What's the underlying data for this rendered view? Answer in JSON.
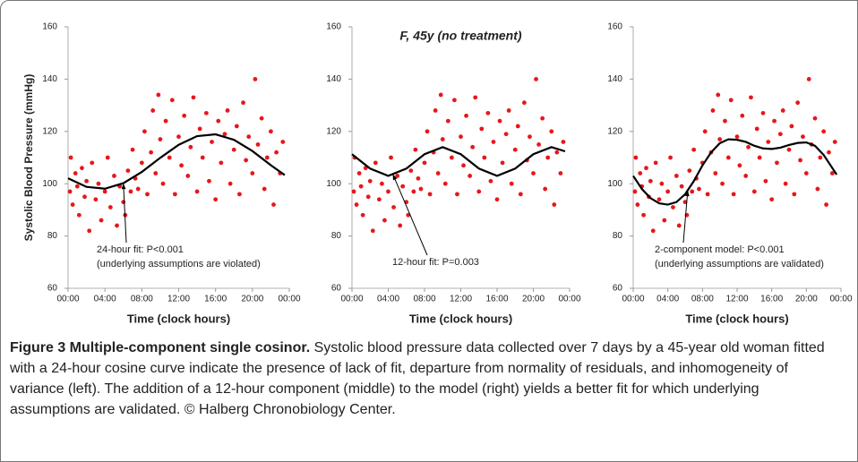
{
  "chart_data": [
    {
      "type": "scatter",
      "ylabel": "Systolic Blood Pressure (mmHg)",
      "xlabel": "Time (clock hours)",
      "xlim": [
        0,
        24
      ],
      "xticks": [
        {
          "value": 0,
          "label": "00:00"
        },
        {
          "value": 4,
          "label": "04:00"
        },
        {
          "value": 8,
          "label": "08:00"
        },
        {
          "value": 12,
          "label": "12:00"
        },
        {
          "value": 16,
          "label": "16:00"
        },
        {
          "value": 20,
          "label": "20:00"
        },
        {
          "value": 24,
          "label": "00:00"
        }
      ],
      "ylim": [
        60,
        160
      ],
      "yticks": [
        60,
        80,
        100,
        120,
        140,
        160
      ],
      "annotation": [
        "24-hour fit: P<0.001",
        "(underlying assumptions are violated)"
      ],
      "series": [
        {
          "kind": "points",
          "color": "#e8161b",
          "x": [
            0.2,
            0.3,
            0.5,
            0.8,
            1.0,
            1.2,
            1.5,
            1.8,
            2.0,
            2.3,
            2.6,
            3.0,
            3.3,
            3.6,
            4.0,
            4.3,
            4.6,
            5.0,
            5.3,
            5.6,
            6.0,
            6.2,
            6.5,
            6.8,
            7.0,
            7.3,
            7.6,
            8.0,
            8.3,
            8.6,
            9.0,
            9.2,
            9.5,
            9.8,
            10.0,
            10.3,
            10.6,
            11.0,
            11.3,
            11.6,
            12.0,
            12.3,
            12.6,
            13.0,
            13.3,
            13.6,
            14.0,
            14.3,
            14.6,
            15.0,
            15.3,
            15.6,
            16.0,
            16.3,
            16.6,
            17.0,
            17.3,
            17.6,
            18.0,
            18.3,
            18.6,
            19.0,
            19.3,
            19.6,
            20.0,
            20.3,
            20.6,
            21.0,
            21.3,
            21.6,
            22.0,
            22.3,
            22.6,
            23.0,
            23.3
          ],
          "values": [
            97,
            110,
            92,
            104,
            99,
            88,
            106,
            95,
            101,
            82,
            108,
            94,
            100,
            86,
            97,
            110,
            91,
            103,
            84,
            99,
            93,
            88,
            105,
            97,
            113,
            102,
            98,
            108,
            120,
            96,
            112,
            128,
            104,
            134,
            117,
            100,
            124,
            110,
            132,
            96,
            118,
            107,
            126,
            103,
            114,
            133,
            97,
            121,
            110,
            127,
            101,
            116,
            94,
            124,
            108,
            119,
            128,
            100,
            113,
            122,
            96,
            131,
            109,
            118,
            104,
            140,
            115,
            125,
            98,
            110,
            120,
            92,
            112,
            104,
            116
          ]
        },
        {
          "kind": "line",
          "color": "#000000",
          "x": [
            0,
            2,
            4,
            6,
            8,
            10,
            12,
            14,
            16,
            18,
            20,
            22,
            23.5
          ],
          "values": [
            102.1,
            98.8,
            98.1,
            100.2,
            104.5,
            109.9,
            114.9,
            118.2,
            118.9,
            116.8,
            112.5,
            107.1,
            103.3
          ]
        }
      ]
    },
    {
      "type": "scatter",
      "title": "F, 45y (no treatment)",
      "xlabel": "Time (clock hours)",
      "xlim": [
        0,
        24
      ],
      "xticks": [
        {
          "value": 0,
          "label": "00:00"
        },
        {
          "value": 4,
          "label": "04:00"
        },
        {
          "value": 8,
          "label": "08:00"
        },
        {
          "value": 12,
          "label": "12:00"
        },
        {
          "value": 16,
          "label": "16:00"
        },
        {
          "value": 20,
          "label": "20:00"
        },
        {
          "value": 24,
          "label": "00:00"
        }
      ],
      "ylim": [
        60,
        160
      ],
      "yticks": [
        60,
        80,
        100,
        120,
        140,
        160
      ],
      "annotation": [
        "12-hour fit: P=0.003"
      ],
      "series": [
        {
          "kind": "points",
          "color": "#e8161b",
          "x": [
            0.2,
            0.3,
            0.5,
            0.8,
            1.0,
            1.2,
            1.5,
            1.8,
            2.0,
            2.3,
            2.6,
            3.0,
            3.3,
            3.6,
            4.0,
            4.3,
            4.6,
            5.0,
            5.3,
            5.6,
            6.0,
            6.2,
            6.5,
            6.8,
            7.0,
            7.3,
            7.6,
            8.0,
            8.3,
            8.6,
            9.0,
            9.2,
            9.5,
            9.8,
            10.0,
            10.3,
            10.6,
            11.0,
            11.3,
            11.6,
            12.0,
            12.3,
            12.6,
            13.0,
            13.3,
            13.6,
            14.0,
            14.3,
            14.6,
            15.0,
            15.3,
            15.6,
            16.0,
            16.3,
            16.6,
            17.0,
            17.3,
            17.6,
            18.0,
            18.3,
            18.6,
            19.0,
            19.3,
            19.6,
            20.0,
            20.3,
            20.6,
            21.0,
            21.3,
            21.6,
            22.0,
            22.3,
            22.6,
            23.0,
            23.3
          ],
          "values": [
            97,
            110,
            92,
            104,
            99,
            88,
            106,
            95,
            101,
            82,
            108,
            94,
            100,
            86,
            97,
            110,
            91,
            103,
            84,
            99,
            93,
            88,
            105,
            97,
            113,
            102,
            98,
            108,
            120,
            96,
            112,
            128,
            104,
            134,
            117,
            100,
            124,
            110,
            132,
            96,
            118,
            107,
            126,
            103,
            114,
            133,
            97,
            121,
            110,
            127,
            101,
            116,
            94,
            124,
            108,
            119,
            128,
            100,
            113,
            122,
            96,
            131,
            109,
            118,
            104,
            140,
            115,
            125,
            98,
            110,
            120,
            92,
            112,
            104,
            116
          ]
        },
        {
          "kind": "line",
          "color": "#000000",
          "x": [
            0,
            2,
            4,
            6,
            8,
            10,
            12,
            14,
            16,
            18,
            20,
            22,
            23.5
          ],
          "values": [
            111.3,
            105.8,
            103,
            105.8,
            111.3,
            114,
            111.3,
            105.8,
            103,
            105.8,
            111.3,
            114,
            112.4
          ]
        }
      ]
    },
    {
      "type": "scatter",
      "xlabel": "Time (clock hours)",
      "xlim": [
        0,
        24
      ],
      "xticks": [
        {
          "value": 0,
          "label": "00:00"
        },
        {
          "value": 4,
          "label": "04:00"
        },
        {
          "value": 8,
          "label": "08:00"
        },
        {
          "value": 12,
          "label": "12:00"
        },
        {
          "value": 16,
          "label": "16:00"
        },
        {
          "value": 20,
          "label": "20:00"
        },
        {
          "value": 24,
          "label": "00:00"
        }
      ],
      "ylim": [
        60,
        160
      ],
      "yticks": [
        60,
        80,
        100,
        120,
        140,
        160
      ],
      "annotation": [
        "2-component model: P<0.001",
        "(underlying assumptions are validated)"
      ],
      "series": [
        {
          "kind": "points",
          "color": "#e8161b",
          "x": [
            0.2,
            0.3,
            0.5,
            0.8,
            1.0,
            1.2,
            1.5,
            1.8,
            2.0,
            2.3,
            2.6,
            3.0,
            3.3,
            3.6,
            4.0,
            4.3,
            4.6,
            5.0,
            5.3,
            5.6,
            6.0,
            6.2,
            6.5,
            6.8,
            7.0,
            7.3,
            7.6,
            8.0,
            8.3,
            8.6,
            9.0,
            9.2,
            9.5,
            9.8,
            10.0,
            10.3,
            10.6,
            11.0,
            11.3,
            11.6,
            12.0,
            12.3,
            12.6,
            13.0,
            13.3,
            13.6,
            14.0,
            14.3,
            14.6,
            15.0,
            15.3,
            15.6,
            16.0,
            16.3,
            16.6,
            17.0,
            17.3,
            17.6,
            18.0,
            18.3,
            18.6,
            19.0,
            19.3,
            19.6,
            20.0,
            20.3,
            20.6,
            21.0,
            21.3,
            21.6,
            22.0,
            22.3,
            22.6,
            23.0,
            23.3
          ],
          "values": [
            97,
            110,
            92,
            104,
            99,
            88,
            106,
            95,
            101,
            82,
            108,
            94,
            100,
            86,
            97,
            110,
            91,
            103,
            84,
            99,
            93,
            88,
            105,
            97,
            113,
            102,
            98,
            108,
            120,
            96,
            112,
            128,
            104,
            134,
            117,
            100,
            124,
            110,
            132,
            96,
            118,
            107,
            126,
            103,
            114,
            133,
            97,
            121,
            110,
            127,
            101,
            116,
            94,
            124,
            108,
            119,
            128,
            100,
            113,
            122,
            96,
            131,
            109,
            118,
            104,
            140,
            115,
            125,
            98,
            110,
            120,
            92,
            112,
            104,
            116
          ]
        },
        {
          "kind": "line",
          "color": "#000000",
          "x": [
            0,
            1,
            2,
            3,
            4,
            5,
            6,
            7,
            8,
            9,
            10,
            11,
            12,
            13,
            14,
            15,
            16,
            17,
            18,
            19,
            20,
            21,
            22,
            23,
            23.5
          ],
          "values": [
            103,
            98,
            94.5,
            92.5,
            92,
            93,
            96,
            101,
            107,
            112,
            115.5,
            117,
            116.8,
            116,
            114.5,
            113.5,
            113.3,
            113.8,
            114.8,
            115.6,
            115.8,
            114.5,
            111,
            106,
            103.5
          ]
        }
      ]
    }
  ],
  "caption": {
    "title": "Figure 3 Multiple-component single cosinor.",
    "text": "Systolic blood pressure data collected over 7 days by a 45-year old woman fitted with a 24-hour cosine curve indicate the presence of lack of fit, departure from normality of residuals, and inhomogeneity of variance (left). The addition of a 12-hour component (middle) to the model (right) yields a better fit for which underlying assumptions are validated. © Halberg Chronobiology Center."
  }
}
